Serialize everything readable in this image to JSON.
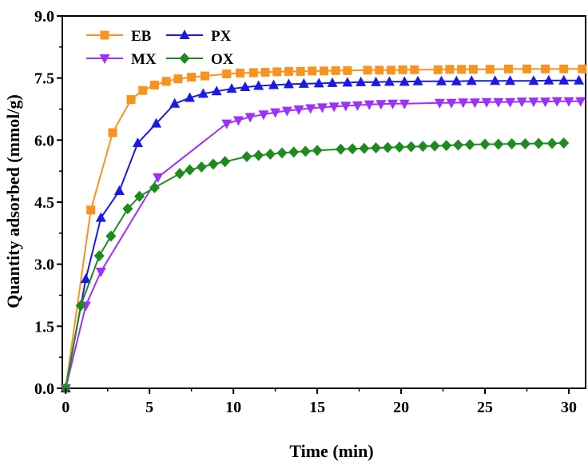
{
  "chart_data": {
    "type": "line",
    "title": "",
    "xlabel": "Time (min)",
    "ylabel": "Quantity adsorbed (mmol/g)",
    "xlim": [
      -0.2,
      31.0
    ],
    "ylim": [
      0,
      9.0
    ],
    "xticks": [
      0,
      5,
      10,
      15,
      20,
      25,
      30
    ],
    "xtick_labels": [
      "0",
      "5",
      "10",
      "15",
      "20",
      "25",
      "30"
    ],
    "yticks": [
      0,
      1.5,
      3.0,
      4.5,
      6.0,
      7.5,
      9.0
    ],
    "ytick_labels": [
      "0.0",
      "1.5",
      "3.0",
      "4.5",
      "6.0",
      "7.5",
      "9.0"
    ],
    "grid": false,
    "legend_position": "top-left",
    "series": [
      {
        "name": "EB",
        "color": "#F7931E",
        "marker": "square",
        "x": [
          0,
          1.5,
          2.8,
          3.9,
          4.6,
          5.3,
          6.0,
          6.7,
          7.5,
          8.3,
          9.6,
          10.4,
          11.2,
          11.9,
          12.6,
          13.3,
          14.0,
          14.7,
          15.4,
          16.1,
          16.8,
          18.0,
          18.7,
          19.4,
          20.1,
          20.8,
          22.2,
          22.9,
          23.6,
          24.3,
          25.3,
          26.4,
          27.5,
          28.6,
          29.7,
          30.8
        ],
        "y": [
          0,
          4.31,
          6.18,
          6.98,
          7.2,
          7.33,
          7.42,
          7.48,
          7.52,
          7.55,
          7.6,
          7.62,
          7.63,
          7.64,
          7.65,
          7.66,
          7.66,
          7.67,
          7.67,
          7.68,
          7.68,
          7.69,
          7.69,
          7.69,
          7.7,
          7.7,
          7.7,
          7.71,
          7.71,
          7.71,
          7.71,
          7.72,
          7.72,
          7.72,
          7.72,
          7.72
        ]
      },
      {
        "name": "PX",
        "color": "#1A1AE6",
        "marker": "triangle-up",
        "x": [
          0,
          1.2,
          2.1,
          3.2,
          4.3,
          5.4,
          6.5,
          7.4,
          8.2,
          9.0,
          9.9,
          10.7,
          11.5,
          12.4,
          13.3,
          14.2,
          15.1,
          15.9,
          16.8,
          17.6,
          18.5,
          19.3,
          20.2,
          21.0,
          22.4,
          23.3,
          24.2,
          25.6,
          26.5,
          27.9,
          28.8,
          29.7,
          30.6
        ],
        "y": [
          0,
          2.64,
          4.12,
          4.77,
          5.93,
          6.4,
          6.88,
          7.02,
          7.12,
          7.18,
          7.24,
          7.28,
          7.31,
          7.33,
          7.35,
          7.36,
          7.37,
          7.38,
          7.39,
          7.4,
          7.4,
          7.41,
          7.41,
          7.42,
          7.42,
          7.42,
          7.43,
          7.43,
          7.43,
          7.43,
          7.44,
          7.44,
          7.44
        ]
      },
      {
        "name": "MX",
        "color": "#9B30FF",
        "marker": "triangle-down",
        "x": [
          0,
          1.2,
          2.1,
          5.5,
          9.6,
          10.3,
          11.0,
          11.8,
          12.5,
          13.2,
          13.9,
          14.6,
          15.3,
          16.0,
          16.7,
          17.4,
          18.1,
          18.8,
          19.5,
          20.2,
          22.3,
          23.0,
          23.7,
          24.4,
          25.1,
          25.8,
          26.5,
          27.2,
          27.9,
          28.6,
          29.3,
          30.0,
          30.7
        ],
        "y": [
          0,
          2.0,
          2.82,
          5.1,
          6.4,
          6.48,
          6.56,
          6.62,
          6.67,
          6.71,
          6.74,
          6.77,
          6.79,
          6.81,
          6.83,
          6.84,
          6.86,
          6.87,
          6.88,
          6.88,
          6.9,
          6.9,
          6.91,
          6.91,
          6.92,
          6.92,
          6.92,
          6.93,
          6.93,
          6.93,
          6.94,
          6.94,
          6.94
        ]
      },
      {
        "name": "OX",
        "color": "#1E8B1E",
        "marker": "diamond",
        "x": [
          0,
          0.9,
          2.0,
          2.7,
          3.7,
          4.4,
          5.3,
          6.8,
          7.4,
          8.1,
          8.8,
          9.5,
          10.8,
          11.5,
          12.2,
          12.9,
          13.6,
          14.3,
          15.0,
          16.4,
          17.1,
          17.8,
          18.5,
          19.2,
          19.9,
          20.6,
          21.3,
          22.0,
          22.7,
          23.4,
          24.1,
          25.0,
          25.8,
          26.6,
          27.4,
          28.2,
          29.0,
          29.7
        ],
        "y": [
          0,
          2.0,
          3.2,
          3.68,
          4.34,
          4.64,
          4.85,
          5.19,
          5.28,
          5.35,
          5.42,
          5.48,
          5.6,
          5.63,
          5.66,
          5.69,
          5.71,
          5.73,
          5.75,
          5.78,
          5.79,
          5.8,
          5.81,
          5.82,
          5.83,
          5.84,
          5.85,
          5.86,
          5.87,
          5.88,
          5.89,
          5.9,
          5.9,
          5.91,
          5.91,
          5.92,
          5.92,
          5.93
        ]
      }
    ]
  }
}
